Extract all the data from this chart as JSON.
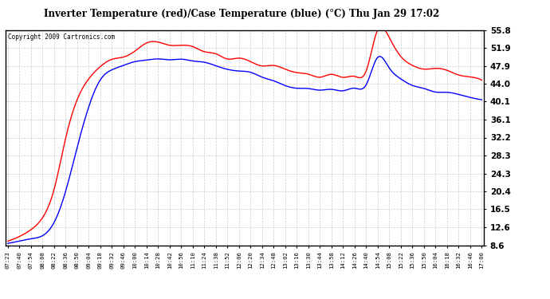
{
  "title": "Inverter Temperature (red)/Case Temperature (blue) (°C) Thu Jan 29 17:02",
  "copyright": "Copyright 2009 Cartronics.com",
  "yticks": [
    8.6,
    12.6,
    16.5,
    20.4,
    24.3,
    28.3,
    32.2,
    36.1,
    40.1,
    44.0,
    47.9,
    51.9,
    55.8
  ],
  "ymin": 8.6,
  "ymax": 55.8,
  "bg_color": "#ffffff",
  "plot_bg_color": "#ffffff",
  "grid_color": "#cccccc",
  "line_red": "red",
  "line_blue": "blue",
  "xtick_labels": [
    "07:23",
    "07:40",
    "07:54",
    "08:08",
    "08:22",
    "08:36",
    "08:50",
    "09:04",
    "09:18",
    "09:32",
    "09:46",
    "10:00",
    "10:14",
    "10:28",
    "10:42",
    "10:56",
    "11:10",
    "11:24",
    "11:38",
    "11:52",
    "12:06",
    "12:20",
    "12:34",
    "12:48",
    "13:02",
    "13:16",
    "13:30",
    "13:44",
    "13:58",
    "14:12",
    "14:26",
    "14:40",
    "14:54",
    "15:08",
    "15:22",
    "15:36",
    "15:50",
    "16:04",
    "16:18",
    "16:32",
    "16:46",
    "17:00"
  ],
  "red_vals": [
    9.5,
    10.5,
    12.0,
    14.5,
    21.0,
    32.0,
    40.5,
    45.5,
    47.5,
    49.2,
    50.0,
    51.2,
    52.8,
    53.2,
    52.5,
    52.8,
    52.0,
    51.0,
    50.5,
    49.8,
    49.2,
    48.8,
    48.0,
    47.5,
    47.2,
    46.8,
    46.2,
    46.0,
    45.8,
    45.5,
    45.8,
    46.5,
    56.2,
    54.0,
    50.5,
    48.2,
    47.5,
    47.0,
    46.5,
    46.0,
    45.5,
    44.8
  ],
  "blue_vals": [
    9.0,
    9.5,
    10.0,
    11.0,
    13.5,
    20.0,
    30.0,
    39.0,
    44.5,
    47.0,
    48.0,
    48.8,
    49.2,
    49.5,
    49.5,
    49.3,
    49.0,
    48.5,
    48.0,
    47.5,
    46.8,
    46.2,
    45.5,
    44.8,
    43.8,
    43.2,
    43.0,
    42.8,
    42.5,
    42.5,
    43.0,
    43.5,
    49.5,
    47.5,
    45.0,
    43.5,
    43.0,
    42.5,
    42.0,
    41.5,
    41.0,
    40.5
  ]
}
